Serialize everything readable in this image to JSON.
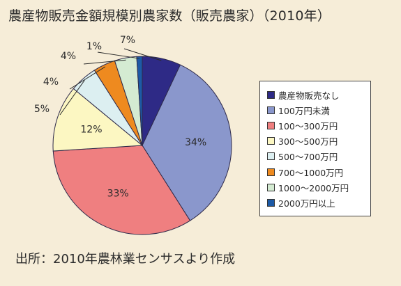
{
  "title": "農産物販売金額規模別農家数（販売農家）（2010年）",
  "source": "出所：2010年農林業センサスより作成",
  "chart_data": {
    "type": "pie",
    "title": "農産物販売金額規模別農家数（販売農家）（2010年）",
    "legend_position": "right",
    "slices": [
      {
        "label": "農産物販売なし",
        "value": 7,
        "display": "7%",
        "color": "#2e2a86"
      },
      {
        "label": "100万円未満",
        "value": 34,
        "display": "34%",
        "color": "#8a97cc"
      },
      {
        "label": "100～300万円",
        "value": 33,
        "display": "33%",
        "color": "#ef7f80"
      },
      {
        "label": "300～500万円",
        "value": 12,
        "display": "12%",
        "color": "#fcf7c2"
      },
      {
        "label": "500～700万円",
        "value": 5,
        "display": "5%",
        "color": "#dceff1"
      },
      {
        "label": "700～1000万円",
        "value": 4,
        "display": "4%",
        "color": "#ee8a1f"
      },
      {
        "label": "1000～2000万円",
        "value": 4,
        "display": "4%",
        "color": "#d4ebd2"
      },
      {
        "label": "2000万円以上",
        "value": 1,
        "display": "1%",
        "color": "#1c5aa6"
      }
    ]
  }
}
